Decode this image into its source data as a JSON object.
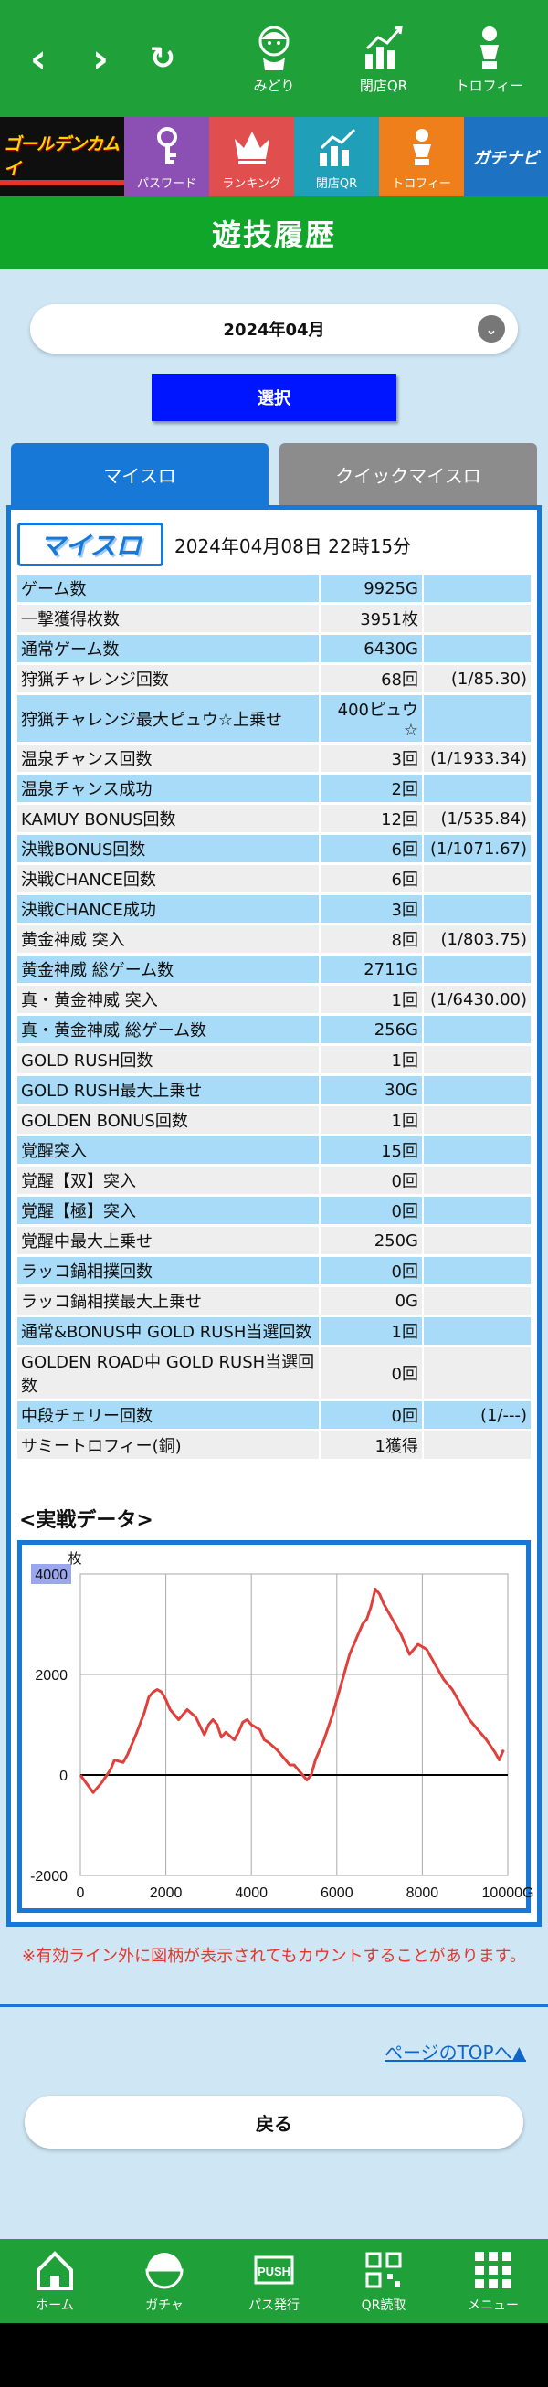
{
  "topnav": {
    "quick": [
      {
        "label": "みどり",
        "icon": "midori-character-icon"
      },
      {
        "label": "閉店QR",
        "icon": "qr-chart-icon"
      },
      {
        "label": "トロフィー",
        "icon": "trophy-figure-icon"
      }
    ]
  },
  "tiles": {
    "logo": "ゴールデンカムイ",
    "items": [
      "パスワード",
      "ランキング",
      "閉店QR",
      "トロフィー"
    ],
    "gachinavi": "ガチナビ"
  },
  "page_title": "遊技履歴",
  "month_select": {
    "value": "2024年04月"
  },
  "select_button": "選択",
  "tabs": {
    "active": "マイスロ",
    "inactive": "クイックマイスロ"
  },
  "panel": {
    "logo": "マイスロ",
    "datetime": "2024年04月08日 22時15分"
  },
  "stats": [
    {
      "label": "ゲーム数",
      "value": "9925G",
      "ratio": ""
    },
    {
      "label": "一撃獲得枚数",
      "value": "3951枚",
      "ratio": ""
    },
    {
      "label": "通常ゲーム数",
      "value": "6430G",
      "ratio": ""
    },
    {
      "label": "狩猟チャレンジ回数",
      "value": "68回",
      "ratio": "(1/85.30)"
    },
    {
      "label": "狩猟チャレンジ最大ピュウ☆上乗せ",
      "value": "400ピュウ☆",
      "ratio": ""
    },
    {
      "label": "温泉チャンス回数",
      "value": "3回",
      "ratio": "(1/1933.34)"
    },
    {
      "label": "温泉チャンス成功",
      "value": "2回",
      "ratio": ""
    },
    {
      "label": "KAMUY BONUS回数",
      "value": "12回",
      "ratio": "(1/535.84)"
    },
    {
      "label": "決戦BONUS回数",
      "value": "6回",
      "ratio": "(1/1071.67)"
    },
    {
      "label": "決戦CHANCE回数",
      "value": "6回",
      "ratio": ""
    },
    {
      "label": "決戦CHANCE成功",
      "value": "3回",
      "ratio": ""
    },
    {
      "label": "黄金神威 突入",
      "value": "8回",
      "ratio": "(1/803.75)"
    },
    {
      "label": "黄金神威 総ゲーム数",
      "value": "2711G",
      "ratio": ""
    },
    {
      "label": "真・黄金神威 突入",
      "value": "1回",
      "ratio": "(1/6430.00)"
    },
    {
      "label": "真・黄金神威 総ゲーム数",
      "value": "256G",
      "ratio": ""
    },
    {
      "label": "GOLD RUSH回数",
      "value": "1回",
      "ratio": ""
    },
    {
      "label": "GOLD RUSH最大上乗せ",
      "value": "30G",
      "ratio": ""
    },
    {
      "label": "GOLDEN BONUS回数",
      "value": "1回",
      "ratio": ""
    },
    {
      "label": "覚醒突入",
      "value": "15回",
      "ratio": ""
    },
    {
      "label": "覚醒【双】突入",
      "value": "0回",
      "ratio": ""
    },
    {
      "label": "覚醒【極】突入",
      "value": "0回",
      "ratio": ""
    },
    {
      "label": "覚醒中最大上乗せ",
      "value": "250G",
      "ratio": ""
    },
    {
      "label": "ラッコ鍋相撲回数",
      "value": "0回",
      "ratio": ""
    },
    {
      "label": "ラッコ鍋相撲最大上乗せ",
      "value": "0G",
      "ratio": ""
    },
    {
      "label": "通常&BONUS中 GOLD RUSH当選回数",
      "value": "1回",
      "ratio": ""
    },
    {
      "label": "GOLDEN ROAD中 GOLD RUSH当選回数",
      "value": "0回",
      "ratio": ""
    },
    {
      "label": "中段チェリー回数",
      "value": "0回",
      "ratio": "(1/---)"
    },
    {
      "label": "サミートロフィー(銅)",
      "value": "1獲得",
      "ratio": ""
    }
  ],
  "chart_section_title": "<実戦データ>",
  "chart_data": {
    "type": "line",
    "title": "",
    "xlabel": "",
    "ylabel": "枚",
    "xlim": [
      0,
      10000
    ],
    "ylim": [
      -2000,
      4000
    ],
    "xticks": [
      "0",
      "2000",
      "4000",
      "6000",
      "8000",
      "10000G"
    ],
    "yticks": [
      "4000",
      "2000",
      "0",
      "-2000"
    ],
    "grid": true,
    "color": "#e0403c",
    "series": [
      {
        "name": "",
        "x": [
          0,
          300,
          500,
          700,
          800,
          1000,
          1100,
          1300,
          1500,
          1600,
          1700,
          1800,
          1900,
          2000,
          2100,
          2300,
          2500,
          2700,
          2900,
          3000,
          3100,
          3200,
          3300,
          3400,
          3600,
          3700,
          3800,
          3900,
          4000,
          4200,
          4300,
          4400,
          4600,
          4800,
          4900,
          5000,
          5200,
          5300,
          5400,
          5500,
          5700,
          5900,
          6100,
          6300,
          6500,
          6600,
          6700,
          6800,
          6900,
          7000,
          7100,
          7300,
          7500,
          7700,
          7900,
          8100,
          8300,
          8500,
          8700,
          8900,
          9100,
          9300,
          9500,
          9700,
          9800,
          9900
        ],
        "y": [
          0,
          -350,
          -150,
          100,
          300,
          250,
          400,
          800,
          1250,
          1550,
          1650,
          1700,
          1650,
          1500,
          1300,
          1100,
          1300,
          1150,
          800,
          1000,
          1100,
          1000,
          750,
          850,
          700,
          850,
          1050,
          1100,
          1000,
          900,
          700,
          650,
          500,
          300,
          200,
          200,
          0,
          -100,
          0,
          300,
          700,
          1200,
          1800,
          2400,
          2800,
          3000,
          3100,
          3350,
          3700,
          3600,
          3400,
          3100,
          2800,
          2400,
          2600,
          2500,
          2200,
          1900,
          1700,
          1400,
          1100,
          900,
          700,
          450,
          300,
          500
        ]
      }
    ]
  },
  "note": "※有効ライン外に図柄が表示されてもカウントすることがあります。",
  "page_top_link": "ページのTOPへ▲",
  "back_button": "戻る",
  "bottom_nav": [
    {
      "label": "ホーム",
      "icon": "home-icon"
    },
    {
      "label": "ガチャ",
      "icon": "gacha-icon"
    },
    {
      "label": "パス発行",
      "icon": "push-pass-icon"
    },
    {
      "label": "QR読取",
      "icon": "qr-scan-icon"
    },
    {
      "label": "メニュー",
      "icon": "menu-grid-icon"
    }
  ]
}
